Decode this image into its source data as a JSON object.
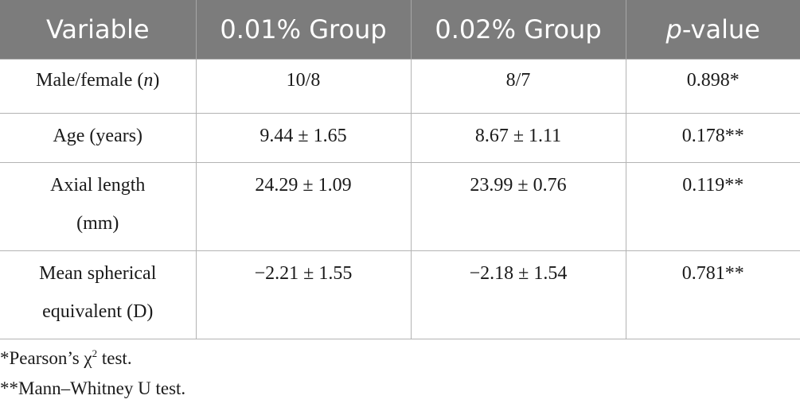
{
  "table": {
    "headers": {
      "variable": "Variable",
      "group1": "0.01% Group",
      "group2": "0.02% Group",
      "pvalue_italic": "p",
      "pvalue_rest": "-value"
    },
    "rows": [
      {
        "label_main": "Male/female (",
        "label_italic": "n",
        "label_end": ")",
        "g1": "10/8",
        "g2": "8/7",
        "p": "0.898*"
      },
      {
        "label": "Age (years)",
        "g1": "9.44 ± 1.65",
        "g2": "8.67 ± 1.11",
        "p": "0.178**"
      },
      {
        "label_line1": "Axial length",
        "label_line2": "(mm)",
        "g1": "24.29 ± 1.09",
        "g2": "23.99 ± 0.76",
        "p": "0.119**"
      },
      {
        "label_line1": "Mean spherical",
        "label_line2": "equivalent (D)",
        "g1": "−2.21 ± 1.55",
        "g2": "−2.18 ± 1.54",
        "p": "0.781**"
      }
    ]
  },
  "footnotes": {
    "fn1_prefix": "*Pearson’s χ",
    "fn1_sup": "2",
    "fn1_suffix": " test.",
    "fn2": "**Mann–Whitney U test."
  }
}
